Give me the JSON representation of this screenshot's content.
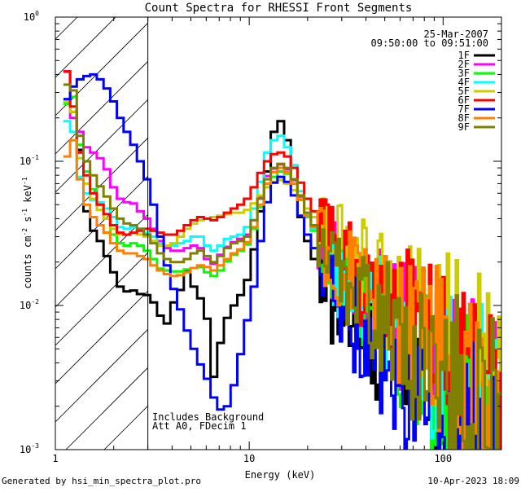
{
  "chart_data": {
    "type": "line",
    "title": "Count Spectra for RHESSI Front Segments",
    "xlabel": "Energy (keV)",
    "ylabel_base": "counts cm",
    "ylabel_sup1": "-2",
    "ylabel_mid1": " s",
    "ylabel_sup2": "-1",
    "ylabel_mid2": " keV",
    "ylabel_sup3": "-1",
    "xscale": "log",
    "yscale": "log",
    "xlim": [
      1,
      200
    ],
    "ylim": [
      0.001,
      1
    ],
    "x_ticks": [
      {
        "value": 1,
        "label": "1"
      },
      {
        "value": 10,
        "label": "10"
      },
      {
        "value": 100,
        "label": "100"
      }
    ],
    "y_ticks": [
      {
        "value": 1,
        "base": "10",
        "exp": "0"
      },
      {
        "value": 0.1,
        "base": "10",
        "exp": "-1"
      },
      {
        "value": 0.01,
        "base": "10",
        "exp": "-2"
      },
      {
        "value": 0.001,
        "base": "10",
        "exp": "-3"
      }
    ],
    "date": "25-Mar-2007",
    "time_range": "09:50:00 to 09:51:00",
    "annotations": [
      "Includes Background",
      "Att A0, FDecim 1"
    ],
    "hatched_below_keV": 3,
    "series": [
      {
        "name": "1F",
        "color": "#000000",
        "shape": 0,
        "values": [
          0.42,
          0.22,
          0.12,
          0.045,
          0.033,
          0.028,
          0.022,
          0.017,
          0.0135,
          0.0125,
          0.0127,
          0.012,
          0.0118,
          0.0105,
          0.0085,
          0.0075,
          0.0105,
          0.0128,
          0.0172,
          0.0135,
          0.0112,
          0.0081,
          0.0032,
          0.0055,
          0.0082,
          0.01,
          0.0118,
          0.015,
          0.0245,
          0.045,
          0.085,
          0.16,
          0.19,
          0.14,
          0.075,
          0.041,
          0.028,
          0.021,
          0.0142,
          0.0118,
          0.0098,
          0.0088,
          0.008,
          0.0072,
          0.0066,
          0.006,
          0.0054,
          0.005,
          0.0046,
          0.0042,
          0.0039,
          0.0036,
          0.0034,
          0.0031,
          0.0029,
          0.0028,
          0.0026,
          0.0024,
          0.0023,
          0.0022,
          0.002,
          0.0019,
          0.0018,
          0.0017,
          0.0016,
          0.0015
        ]
      },
      {
        "name": "2F",
        "color": "#ff00ff",
        "shape": 1,
        "values": [
          0.42,
          0.2,
          0.16,
          0.125,
          0.115,
          0.105,
          0.088,
          0.066,
          0.055,
          0.052,
          0.051,
          0.045,
          0.04,
          0.034,
          0.028,
          0.025,
          0.024,
          0.024,
          0.025,
          0.026,
          0.025,
          0.021,
          0.0195,
          0.0225,
          0.0255,
          0.0275,
          0.029,
          0.031,
          0.039,
          0.056,
          0.079,
          0.089,
          0.095,
          0.088,
          0.074,
          0.056,
          0.042,
          0.034,
          0.027,
          0.0238,
          0.0204,
          0.0182,
          0.0162,
          0.0144,
          0.013,
          0.0116,
          0.0104,
          0.0094,
          0.0086,
          0.0077,
          0.007,
          0.0064,
          0.0058,
          0.0053,
          0.0048,
          0.0044,
          0.004,
          0.0037,
          0.0034,
          0.0031,
          0.0029,
          0.0027,
          0.0025,
          0.0023,
          0.0021,
          0.0019
        ]
      },
      {
        "name": "3F",
        "color": "#00ff00",
        "shape": 2,
        "values": [
          0.25,
          0.28,
          0.13,
          0.085,
          0.064,
          0.05,
          0.04,
          0.031,
          0.027,
          0.026,
          0.027,
          0.026,
          0.024,
          0.021,
          0.018,
          0.0175,
          0.0172,
          0.0172,
          0.0178,
          0.0182,
          0.0185,
          0.017,
          0.016,
          0.0175,
          0.0202,
          0.0225,
          0.024,
          0.0265,
          0.034,
          0.048,
          0.066,
          0.078,
          0.085,
          0.082,
          0.07,
          0.054,
          0.041,
          0.033,
          0.024,
          0.0202,
          0.017,
          0.0148,
          0.013,
          0.0114,
          0.0102,
          0.009,
          0.008,
          0.0072,
          0.0064,
          0.0058,
          0.0052,
          0.0047,
          0.0042,
          0.0038,
          0.0034,
          0.0031,
          0.0028,
          0.0025,
          0.0023,
          0.0021,
          0.0019,
          0.0017,
          0.0016,
          0.0014,
          0.0013,
          0.0012
        ]
      },
      {
        "name": "4F",
        "color": "#00ffff",
        "shape": 3,
        "values": [
          0.19,
          0.16,
          0.078,
          0.06,
          0.054,
          0.052,
          0.047,
          0.041,
          0.035,
          0.034,
          0.035,
          0.034,
          0.032,
          0.03,
          0.027,
          0.026,
          0.026,
          0.027,
          0.028,
          0.03,
          0.03,
          0.026,
          0.024,
          0.026,
          0.029,
          0.03,
          0.031,
          0.035,
          0.047,
          0.072,
          0.115,
          0.14,
          0.15,
          0.125,
          0.094,
          0.062,
          0.043,
          0.034,
          0.0255,
          0.022,
          0.0186,
          0.0164,
          0.0146,
          0.013,
          0.0116,
          0.0104,
          0.0093,
          0.0084,
          0.0076,
          0.0068,
          0.0062,
          0.0056,
          0.0051,
          0.0046,
          0.0042,
          0.0038,
          0.0035,
          0.0032,
          0.0029,
          0.0026,
          0.0024,
          0.0022,
          0.002,
          0.0018,
          0.0017,
          0.0015
        ]
      },
      {
        "name": "5F",
        "color": "#cccc00",
        "shape": 4,
        "values": [
          0.26,
          0.22,
          0.105,
          0.07,
          0.055,
          0.046,
          0.04,
          0.034,
          0.031,
          0.031,
          0.032,
          0.031,
          0.03,
          0.028,
          0.026,
          0.026,
          0.027,
          0.03,
          0.034,
          0.037,
          0.039,
          0.04,
          0.041,
          0.042,
          0.043,
          0.044,
          0.044,
          0.046,
          0.051,
          0.058,
          0.066,
          0.072,
          0.074,
          0.07,
          0.063,
          0.055,
          0.047,
          0.041,
          0.0355,
          0.0315,
          0.028,
          0.0255,
          0.0232,
          0.021,
          0.0192,
          0.0176,
          0.0162,
          0.0148,
          0.0136,
          0.0124,
          0.0114,
          0.0104,
          0.0095,
          0.0087,
          0.008,
          0.0073,
          0.0067,
          0.0061,
          0.0056,
          0.0051,
          0.0047,
          0.0043,
          0.004,
          0.0036,
          0.0033,
          0.003
        ]
      },
      {
        "name": "6F",
        "color": "#ff0000",
        "shape": 5,
        "values": [
          0.42,
          0.24,
          0.115,
          0.08,
          0.06,
          0.05,
          0.043,
          0.036,
          0.032,
          0.031,
          0.032,
          0.033,
          0.034,
          0.033,
          0.032,
          0.031,
          0.031,
          0.033,
          0.036,
          0.039,
          0.041,
          0.04,
          0.039,
          0.041,
          0.044,
          0.047,
          0.05,
          0.055,
          0.066,
          0.083,
          0.1,
          0.112,
          0.115,
          0.108,
          0.09,
          0.071,
          0.055,
          0.045,
          0.0345,
          0.0298,
          0.0256,
          0.0226,
          0.02,
          0.0178,
          0.016,
          0.0143,
          0.0129,
          0.0116,
          0.0105,
          0.0095,
          0.0086,
          0.0078,
          0.0071,
          0.0064,
          0.0058,
          0.0053,
          0.0048,
          0.0044,
          0.004,
          0.0036,
          0.0033,
          0.003,
          0.0027,
          0.0025,
          0.0022,
          0.002
        ]
      },
      {
        "name": "7F",
        "color": "#0000ff",
        "shape": 6,
        "values": [
          0.27,
          0.33,
          0.37,
          0.39,
          0.4,
          0.37,
          0.32,
          0.26,
          0.2,
          0.16,
          0.13,
          0.1,
          0.075,
          0.05,
          0.03,
          0.019,
          0.013,
          0.0094,
          0.0067,
          0.005,
          0.0039,
          0.0031,
          0.0023,
          0.0019,
          0.002,
          0.0028,
          0.0046,
          0.0079,
          0.0135,
          0.028,
          0.052,
          0.071,
          0.078,
          0.072,
          0.058,
          0.042,
          0.031,
          0.025,
          0.018,
          0.0146,
          0.0118,
          0.01,
          0.0086,
          0.0075,
          0.0066,
          0.0058,
          0.0051,
          0.0045,
          0.004,
          0.0036,
          0.0032,
          0.0029,
          0.0026,
          0.0023,
          0.0021,
          0.0019,
          0.0017,
          0.0015,
          0.0014,
          0.0013,
          0.0012,
          0.0011,
          0.00105,
          0.00102,
          0.00101,
          0.001
        ]
      },
      {
        "name": "8F",
        "color": "#ff8000",
        "shape": 7,
        "values": [
          0.108,
          0.14,
          0.075,
          0.05,
          0.041,
          0.036,
          0.032,
          0.027,
          0.024,
          0.023,
          0.023,
          0.022,
          0.021,
          0.019,
          0.0175,
          0.0165,
          0.016,
          0.0162,
          0.017,
          0.0182,
          0.019,
          0.0185,
          0.0175,
          0.019,
          0.021,
          0.023,
          0.0245,
          0.0275,
          0.035,
          0.05,
          0.07,
          0.084,
          0.09,
          0.084,
          0.07,
          0.054,
          0.042,
          0.035,
          0.028,
          0.0246,
          0.0214,
          0.0192,
          0.0173,
          0.0156,
          0.0141,
          0.0128,
          0.0116,
          0.0106,
          0.0097,
          0.0088,
          0.0081,
          0.0074,
          0.0068,
          0.0062,
          0.0057,
          0.0052,
          0.0048,
          0.0044,
          0.004,
          0.0037,
          0.0034,
          0.0031,
          0.0029,
          0.0026,
          0.0024,
          0.0022
        ]
      },
      {
        "name": "9F",
        "color": "#808000",
        "shape": 8,
        "values": [
          0.34,
          0.31,
          0.15,
          0.1,
          0.08,
          0.067,
          0.057,
          0.047,
          0.04,
          0.037,
          0.036,
          0.034,
          0.031,
          0.027,
          0.023,
          0.021,
          0.02,
          0.02,
          0.021,
          0.023,
          0.024,
          0.022,
          0.02,
          0.022,
          0.025,
          0.027,
          0.028,
          0.03,
          0.039,
          0.055,
          0.075,
          0.09,
          0.096,
          0.09,
          0.075,
          0.058,
          0.044,
          0.036,
          0.0265,
          0.0228,
          0.0195,
          0.0172,
          0.0152,
          0.0135,
          0.012,
          0.0107,
          0.0096,
          0.0086,
          0.0077,
          0.0069,
          0.0062,
          0.0056,
          0.0051,
          0.0046,
          0.0041,
          0.0037,
          0.0034,
          0.0031,
          0.0028,
          0.0025,
          0.0023,
          0.0021,
          0.0019,
          0.0017,
          0.0016,
          0.0014
        ]
      }
    ],
    "shared_energy_grid_keV": {
      "start": 1.1,
      "log_step": 0.0345,
      "count": 66
    }
  },
  "footer": {
    "generated_by": "Generated by hsi_min_spectra_plot.pro",
    "timestamp": "10-Apr-2023 18:09"
  }
}
